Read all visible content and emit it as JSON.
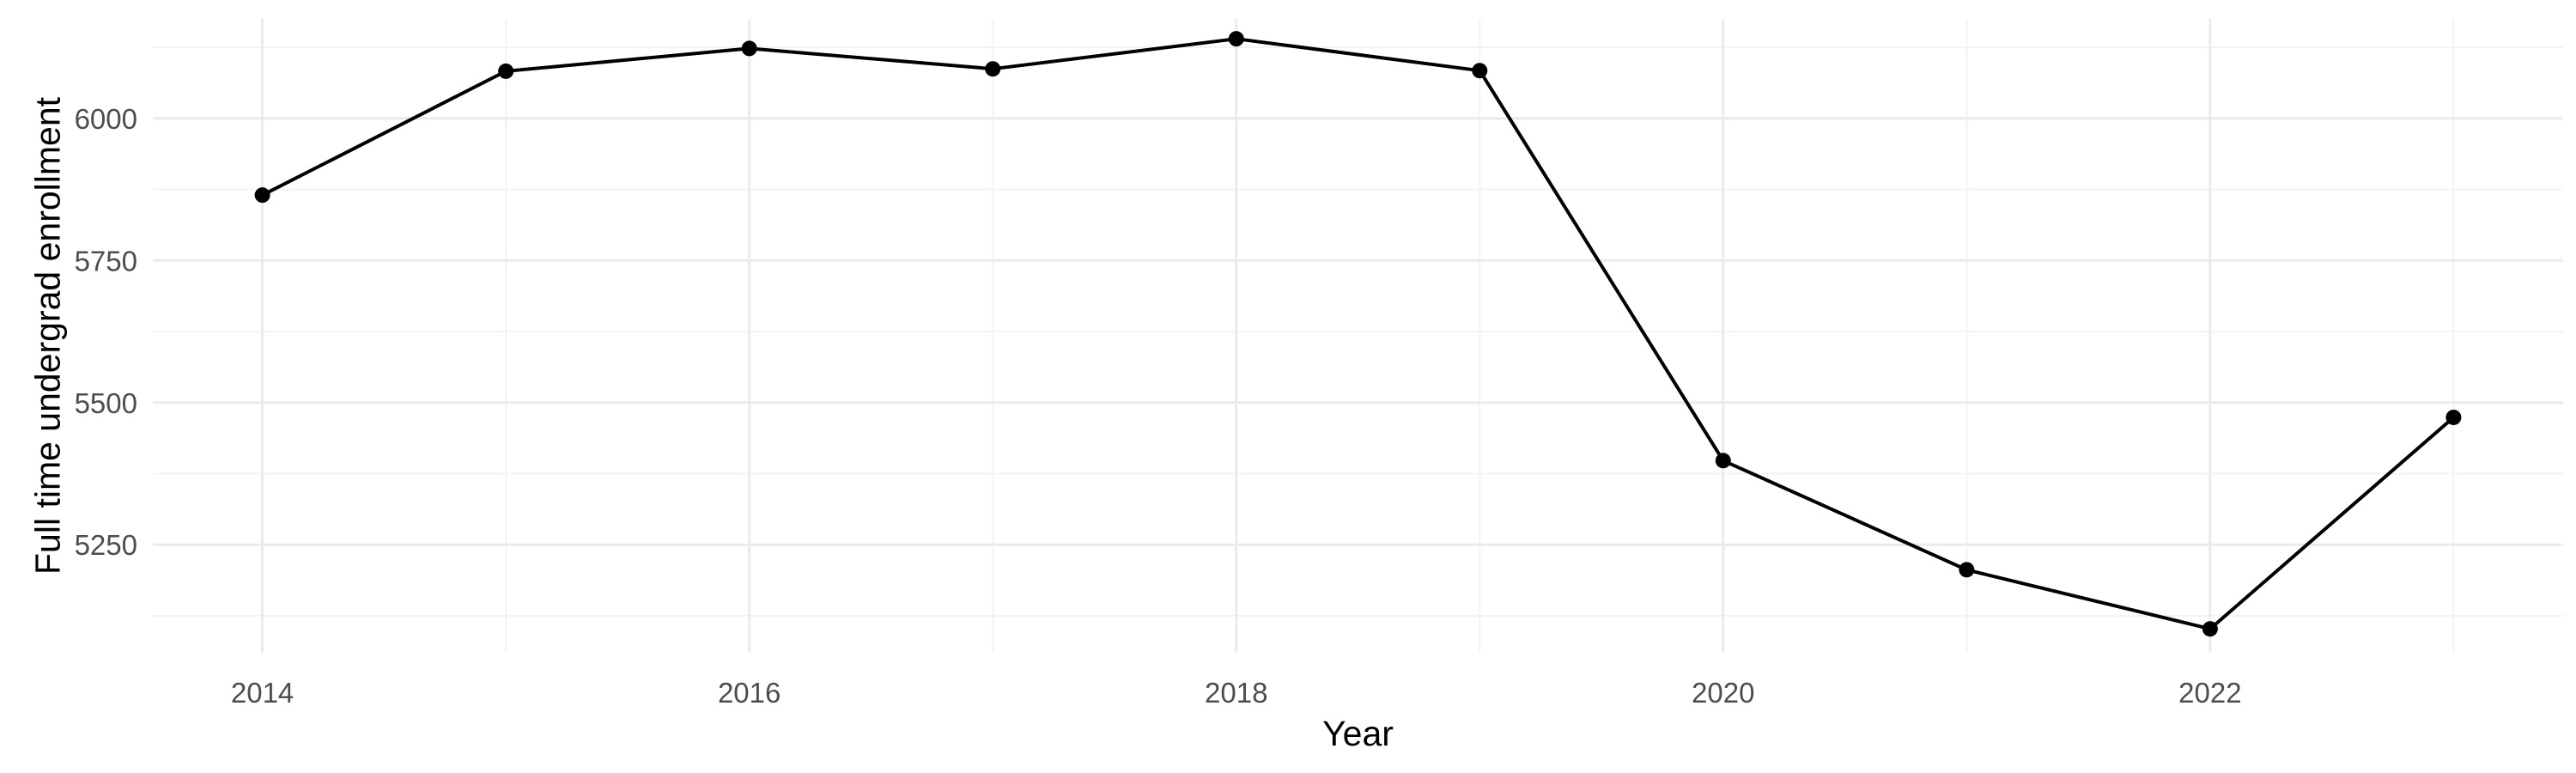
{
  "chart_data": {
    "type": "line",
    "title": "",
    "xlabel": "Year",
    "ylabel": "Full time undergrad enrollment",
    "x": [
      2014,
      2015,
      2016,
      2017,
      2018,
      2019,
      2020,
      2021,
      2022,
      2023
    ],
    "series": [
      {
        "values": [
          5865,
          6083,
          6123,
          6087,
          6140,
          6084,
          5398,
          5206,
          5102,
          5474
        ],
        "color": "#000000"
      }
    ],
    "x_ticks": [
      2014,
      2016,
      2018,
      2020,
      2022
    ],
    "y_ticks": [
      5250,
      5500,
      5750,
      6000
    ],
    "xlim": [
      2013.55,
      2023.45
    ],
    "ylim": [
      5060,
      6175
    ],
    "grid": true,
    "markers": true
  }
}
